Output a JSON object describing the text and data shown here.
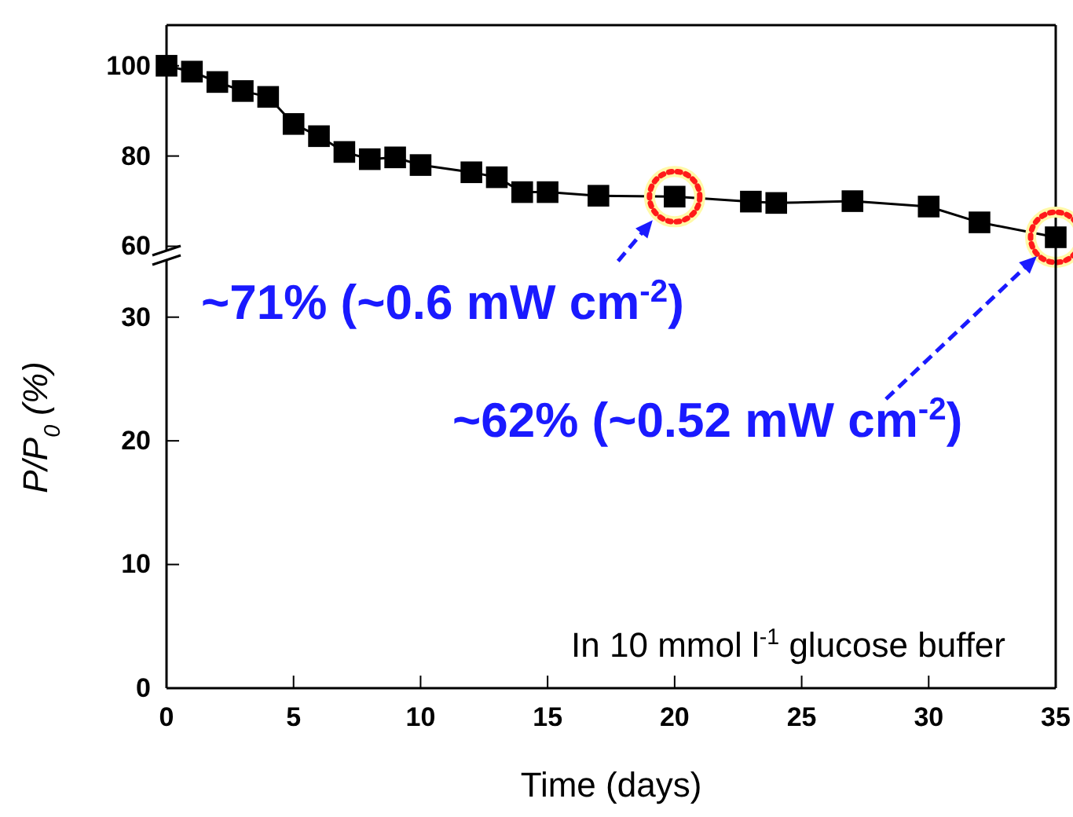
{
  "chart_data": [
    {
      "type": "line",
      "x": [
        0,
        1,
        2,
        3,
        4,
        5,
        6,
        7,
        8,
        9,
        10,
        12,
        13,
        14,
        15,
        17,
        20,
        23,
        24,
        27,
        30,
        32,
        35
      ],
      "values": [
        100,
        98.7,
        96.4,
        94.4,
        93.1,
        87.1,
        84.4,
        80.9,
        79.3,
        79.7,
        78,
        76.4,
        75.3,
        72,
        72,
        71.2,
        71,
        69.9,
        69.6,
        70,
        68.8,
        65.3,
        62
      ],
      "color": "#000000",
      "marker": "square",
      "line_style": "solid",
      "xlim": [
        0,
        35
      ],
      "ylim": [
        58,
        109
      ],
      "yticks": [
        60,
        80,
        100
      ],
      "tick_labels": "y",
      "annotations": [
        {
          "text": "~71% (~0.6 mW cm$^{-2}$)",
          "x": 20,
          "y": 71
        },
        "~62% (~0.52 mW cm$^{-2}$)"
      ]
    },
    {
      "type": "line",
      "xlim": [
        0,
        35
      ],
      "xticks": [
        0,
        5,
        10,
        15,
        20,
        25,
        30,
        35
      ],
      "ylim": [
        0,
        35
      ],
      "yticks": [
        0,
        10,
        20,
        30
      ],
      "xlabel": "Time (days)",
      "ylabel": "P/P$_{0}$ (%)",
      "annotations": [
        "In 10 mmol l$^{-1}$ glucose buffer"
      ]
    }
  ]
}
